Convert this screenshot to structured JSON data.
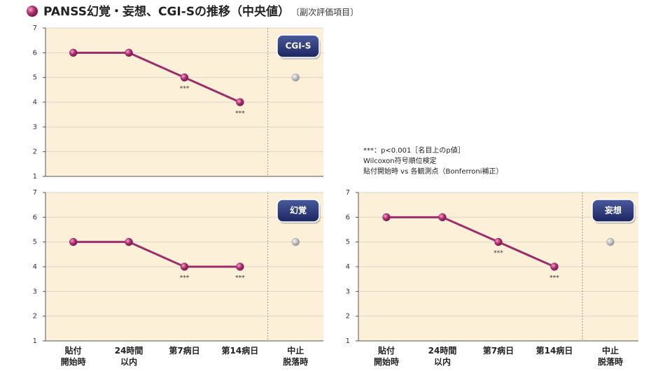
{
  "header": {
    "title": "PANSS幻覚・妄想、CGI-Sの推移（中央値）",
    "subtitle": "〔副次評価項目〕"
  },
  "note": [
    "***：p<0.001［名目上のp値］",
    "Wilcoxon符号順位検定",
    "貼付開始時 vs 各観測点（Bonferroni補正）"
  ],
  "chart_data": [
    {
      "type": "line",
      "badge": "CGI-S",
      "categories": [
        null,
        null,
        null,
        null,
        null
      ],
      "series": [
        {
          "color": "#9b2d6a",
          "values": [
            6,
            6,
            5,
            4,
            null
          ]
        },
        {
          "color": "#a8a8a8",
          "values": [
            null,
            null,
            null,
            null,
            5
          ]
        }
      ],
      "annotations": [
        null,
        null,
        "***",
        "***",
        null
      ],
      "ylim": [
        1,
        7
      ],
      "yticks": [
        1,
        2,
        3,
        4,
        5,
        6,
        7
      ],
      "grid": true
    },
    {
      "type": "line",
      "badge": "幻覚",
      "categories": [
        "貼付\n開始時",
        "24時間\n以内",
        "第7病日",
        "第14病日",
        "中止\n脱落時"
      ],
      "series": [
        {
          "color": "#9b2d6a",
          "values": [
            5,
            5,
            4,
            4,
            null
          ]
        },
        {
          "color": "#a8a8a8",
          "values": [
            null,
            null,
            null,
            null,
            5
          ]
        }
      ],
      "annotations": [
        null,
        null,
        "***",
        "***",
        null
      ],
      "ylim": [
        1,
        7
      ],
      "yticks": [
        1,
        2,
        3,
        4,
        5,
        6,
        7
      ],
      "grid": true
    },
    {
      "type": "line",
      "badge": "妄想",
      "categories": [
        "貼付\n開始時",
        "24時間\n以内",
        "第7病日",
        "第14病日",
        "中止\n脱落時"
      ],
      "series": [
        {
          "color": "#9b2d6a",
          "values": [
            6,
            6,
            5,
            4,
            null
          ]
        },
        {
          "color": "#a8a8a8",
          "values": [
            null,
            null,
            null,
            null,
            5
          ]
        }
      ],
      "annotations": [
        null,
        null,
        "***",
        "***",
        null
      ],
      "ylim": [
        1,
        7
      ],
      "yticks": [
        1,
        2,
        3,
        4,
        5,
        6,
        7
      ],
      "grid": true
    }
  ]
}
